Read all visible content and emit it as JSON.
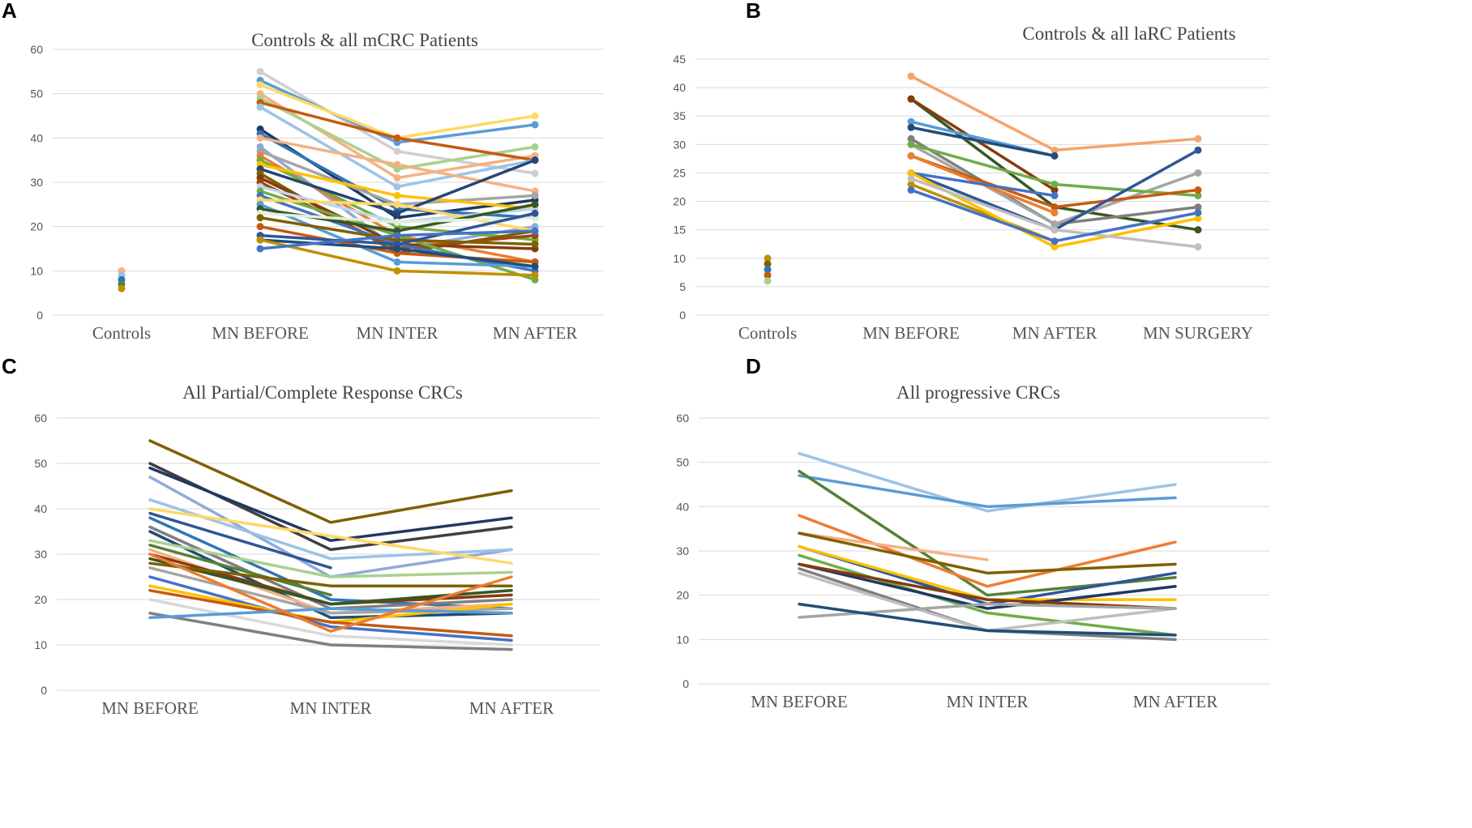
{
  "chart_data": [
    {
      "panel": "A",
      "type": "line",
      "title": "Controls & all mCRC Patients",
      "categories": [
        "Controls",
        "MN BEFORE",
        "MN INTER",
        "MN AFTER"
      ],
      "ylim": [
        0,
        60
      ],
      "yticks": [
        0,
        10,
        20,
        30,
        40,
        50,
        60
      ],
      "markers": true,
      "grid": true,
      "series": [
        {
          "color": "#f4b183",
          "values": [
            10,
            null,
            null,
            null
          ]
        },
        {
          "color": "#9dc3e6",
          "values": [
            9,
            null,
            null,
            null
          ]
        },
        {
          "color": "#2e75b6",
          "values": [
            8,
            null,
            null,
            null
          ]
        },
        {
          "color": "#548235",
          "values": [
            7,
            null,
            null,
            null
          ]
        },
        {
          "color": "#bf9000",
          "values": [
            6,
            null,
            null,
            null
          ]
        },
        {
          "color": "#d0cece",
          "values": [
            null,
            55,
            37,
            32
          ]
        },
        {
          "color": "#5b9bd5",
          "values": [
            null,
            53,
            39,
            43
          ]
        },
        {
          "color": "#ffd966",
          "values": [
            null,
            52,
            40,
            45
          ]
        },
        {
          "color": "#f4b183",
          "values": [
            null,
            50,
            31,
            36
          ]
        },
        {
          "color": "#a9d18e",
          "values": [
            null,
            49,
            33,
            38
          ]
        },
        {
          "color": "#c55a11",
          "values": [
            null,
            48,
            40,
            35
          ]
        },
        {
          "color": "#9dc3e6",
          "values": [
            null,
            47,
            29,
            35
          ]
        },
        {
          "color": "#1f3864",
          "values": [
            null,
            42,
            22,
            26
          ]
        },
        {
          "color": "#2e75b6",
          "values": [
            null,
            41,
            24,
            22
          ]
        },
        {
          "color": "#f4b183",
          "values": [
            null,
            40,
            34,
            28
          ]
        },
        {
          "color": "#8faadc",
          "values": [
            null,
            38,
            15,
            20
          ]
        },
        {
          "color": "#a5a5a5",
          "values": [
            null,
            37,
            25,
            27
          ]
        },
        {
          "color": "#ed7d31",
          "values": [
            null,
            36,
            18,
            12
          ]
        },
        {
          "color": "#70ad47",
          "values": [
            null,
            35,
            20,
            17
          ]
        },
        {
          "color": "#ffc000",
          "values": [
            null,
            34,
            27,
            24
          ]
        },
        {
          "color": "#264478",
          "values": [
            null,
            33,
            23,
            35
          ]
        },
        {
          "color": "#7f6000",
          "values": [
            null,
            32,
            14,
            19
          ]
        },
        {
          "color": "#843c0c",
          "values": [
            null,
            31,
            16,
            15
          ]
        },
        {
          "color": "#9e480e",
          "values": [
            null,
            30,
            15,
            18
          ]
        },
        {
          "color": "#bdd7ee",
          "values": [
            null,
            29,
            21,
            24
          ]
        },
        {
          "color": "#70ad47",
          "values": [
            null,
            28,
            18,
            8
          ]
        },
        {
          "color": "#4472c4",
          "values": [
            null,
            27,
            16,
            10
          ]
        },
        {
          "color": "#ffd966",
          "values": [
            null,
            26,
            25,
            19
          ]
        },
        {
          "color": "#5b9bd5",
          "values": [
            null,
            25,
            12,
            11
          ]
        },
        {
          "color": "#375623",
          "values": [
            null,
            24,
            19,
            25
          ]
        },
        {
          "color": "#e2efda",
          "values": [
            null,
            23,
            21,
            22
          ]
        },
        {
          "color": "#7f6000",
          "values": [
            null,
            22,
            17,
            16
          ]
        },
        {
          "color": "#c55a11",
          "values": [
            null,
            20,
            14,
            12
          ]
        },
        {
          "color": "#2f5597",
          "values": [
            null,
            18,
            16,
            23
          ]
        },
        {
          "color": "#1f4e79",
          "values": [
            null,
            17,
            15,
            11
          ]
        },
        {
          "color": "#bf9000",
          "values": [
            null,
            17,
            10,
            9
          ]
        },
        {
          "color": "#4472c4",
          "values": [
            null,
            15,
            18,
            19
          ]
        }
      ]
    },
    {
      "panel": "B",
      "type": "line",
      "title": "Controls & all laRC Patients",
      "categories": [
        "Controls",
        "MN BEFORE",
        "MN AFTER",
        "MN SURGERY"
      ],
      "ylim": [
        0,
        45
      ],
      "yticks": [
        0,
        5,
        10,
        15,
        20,
        25,
        30,
        35,
        40,
        45
      ],
      "markers": true,
      "grid": true,
      "series": [
        {
          "color": "#bf9000",
          "values": [
            10,
            null,
            null,
            null
          ]
        },
        {
          "color": "#7f6000",
          "values": [
            9,
            null,
            null,
            null
          ]
        },
        {
          "color": "#2e75b6",
          "values": [
            8,
            null,
            null,
            null
          ]
        },
        {
          "color": "#c55a11",
          "values": [
            7,
            null,
            null,
            null
          ]
        },
        {
          "color": "#a9d18e",
          "values": [
            6,
            null,
            null,
            null
          ]
        },
        {
          "color": "#f4a46a",
          "values": [
            null,
            42,
            29,
            31
          ]
        },
        {
          "color": "#375623",
          "values": [
            null,
            38,
            19,
            15
          ]
        },
        {
          "color": "#843c0c",
          "values": [
            null,
            38,
            22,
            null
          ]
        },
        {
          "color": "#5b9bd5",
          "values": [
            null,
            34,
            28,
            null
          ]
        },
        {
          "color": "#1f4e79",
          "values": [
            null,
            33,
            28,
            null
          ]
        },
        {
          "color": "#7f7f7f",
          "values": [
            null,
            31,
            16,
            19
          ]
        },
        {
          "color": "#a5a5a5",
          "values": [
            null,
            30,
            16,
            25
          ]
        },
        {
          "color": "#70ad47",
          "values": [
            null,
            30,
            23,
            21
          ]
        },
        {
          "color": "#c55a11",
          "values": [
            null,
            28,
            19,
            22
          ]
        },
        {
          "color": "#ed7d31",
          "values": [
            null,
            28,
            18,
            null
          ]
        },
        {
          "color": "#2f5597",
          "values": [
            null,
            25,
            15,
            29
          ]
        },
        {
          "color": "#4472c4",
          "values": [
            null,
            25,
            21,
            null
          ]
        },
        {
          "color": "#bf9000",
          "values": [
            null,
            23,
            13,
            null
          ]
        },
        {
          "color": "#ffc000",
          "values": [
            null,
            25,
            12,
            17
          ]
        },
        {
          "color": "#bfbfbf",
          "values": [
            null,
            24,
            15,
            12
          ]
        },
        {
          "color": "#4472c4",
          "values": [
            null,
            22,
            13,
            18
          ]
        }
      ]
    },
    {
      "panel": "C",
      "type": "line",
      "title": "All Partial/Complete Response CRCs",
      "categories": [
        "MN BEFORE",
        "MN INTER",
        "MN AFTER"
      ],
      "ylim": [
        0,
        60
      ],
      "yticks": [
        0,
        10,
        20,
        30,
        40,
        50,
        60
      ],
      "markers": false,
      "grid": true,
      "series": [
        {
          "color": "#7f6000",
          "values": [
            55,
            37,
            44
          ]
        },
        {
          "color": "#404040",
          "values": [
            50,
            31,
            36
          ]
        },
        {
          "color": "#1f3864",
          "values": [
            49,
            33,
            38
          ]
        },
        {
          "color": "#8faadc",
          "values": [
            47,
            25,
            31
          ]
        },
        {
          "color": "#9dc3e6",
          "values": [
            42,
            29,
            31
          ]
        },
        {
          "color": "#ffd966",
          "values": [
            40,
            34,
            28
          ]
        },
        {
          "color": "#2f5597",
          "values": [
            39,
            27,
            null
          ]
        },
        {
          "color": "#2e75b6",
          "values": [
            38,
            20,
            18
          ]
        },
        {
          "color": "#7f7f7f",
          "values": [
            36,
            18,
            20
          ]
        },
        {
          "color": "#1f4e79",
          "values": [
            35,
            16,
            17
          ]
        },
        {
          "color": "#a9d18e",
          "values": [
            33,
            25,
            26
          ]
        },
        {
          "color": "#548235",
          "values": [
            32,
            21,
            null
          ]
        },
        {
          "color": "#f4b183",
          "values": [
            31,
            17,
            19
          ]
        },
        {
          "color": "#843c0c",
          "values": [
            30,
            19,
            21
          ]
        },
        {
          "color": "#375623",
          "values": [
            29,
            19,
            22
          ]
        },
        {
          "color": "#7f6000",
          "values": [
            28,
            23,
            23
          ]
        },
        {
          "color": "#a5a5a5",
          "values": [
            27,
            17,
            18
          ]
        },
        {
          "color": "#4472c4",
          "values": [
            25,
            14,
            11
          ]
        },
        {
          "color": "#ffc000",
          "values": [
            23,
            15,
            19
          ]
        },
        {
          "color": "#c55a11",
          "values": [
            22,
            15,
            12
          ]
        },
        {
          "color": "#d9d9d9",
          "values": [
            20,
            12,
            10
          ]
        },
        {
          "color": "#808080",
          "values": [
            17,
            10,
            9
          ]
        },
        {
          "color": "#5b9bd5",
          "values": [
            16,
            18,
            17
          ]
        },
        {
          "color": "#ed7d31",
          "values": [
            30,
            13,
            25
          ]
        }
      ]
    },
    {
      "panel": "D",
      "type": "line",
      "title": "All progressive CRCs",
      "categories": [
        "MN BEFORE",
        "MN INTER",
        "MN AFTER"
      ],
      "ylim": [
        0,
        60
      ],
      "yticks": [
        0,
        10,
        20,
        30,
        40,
        50,
        60
      ],
      "markers": false,
      "grid": true,
      "series": [
        {
          "color": "#9dc3e6",
          "values": [
            52,
            39,
            45
          ]
        },
        {
          "color": "#5b9bd5",
          "values": [
            47,
            40,
            42
          ]
        },
        {
          "color": "#548235",
          "values": [
            48,
            20,
            24
          ]
        },
        {
          "color": "#ed7d31",
          "values": [
            38,
            22,
            32
          ]
        },
        {
          "color": "#f4b183",
          "values": [
            34,
            28,
            null
          ]
        },
        {
          "color": "#7f6000",
          "values": [
            34,
            25,
            27
          ]
        },
        {
          "color": "#2f5597",
          "values": [
            31,
            18,
            25
          ]
        },
        {
          "color": "#ffc000",
          "values": [
            31,
            19,
            19
          ]
        },
        {
          "color": "#70ad47",
          "values": [
            29,
            16,
            11
          ]
        },
        {
          "color": "#1f3864",
          "values": [
            27,
            17,
            22
          ]
        },
        {
          "color": "#843c0c",
          "values": [
            27,
            19,
            17
          ]
        },
        {
          "color": "#7f7f7f",
          "values": [
            26,
            12,
            10
          ]
        },
        {
          "color": "#bfbfbf",
          "values": [
            25,
            12,
            17
          ]
        },
        {
          "color": "#a5a5a5",
          "values": [
            15,
            18,
            17
          ]
        },
        {
          "color": "#1f4e79",
          "values": [
            18,
            12,
            11
          ]
        }
      ]
    }
  ]
}
